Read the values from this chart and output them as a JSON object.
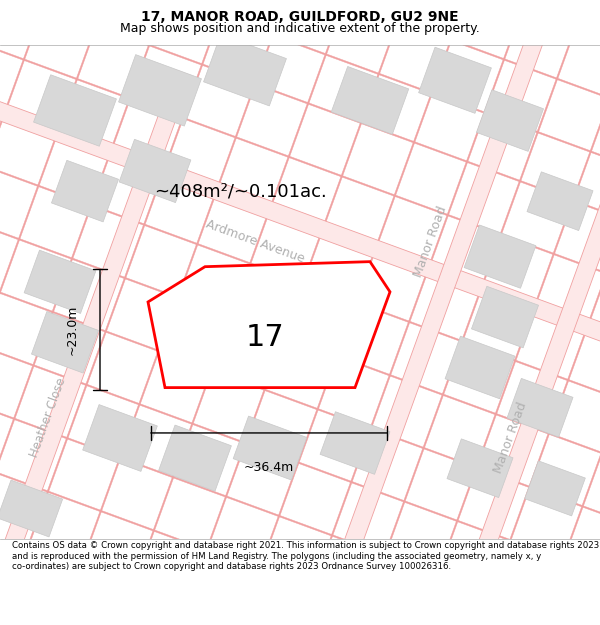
{
  "title": "17, MANOR ROAD, GUILDFORD, GU2 9NE",
  "subtitle": "Map shows position and indicative extent of the property.",
  "footer": "Contains OS data © Crown copyright and database right 2021. This information is subject to Crown copyright and database rights 2023 and is reproduced with the permission of HM Land Registry. The polygons (including the associated geometry, namely x, y co-ordinates) are subject to Crown copyright and database rights 2023 Ordnance Survey 100026316.",
  "area_label": "~408m²/~0.101ac.",
  "width_label": "~36.4m",
  "height_label": "~23.0m",
  "plot_number": "17",
  "road_color": "#f0a0a0",
  "block_color": "#d8d8d8",
  "block_edge": "#c8c8c8",
  "title_fontsize": 10,
  "subtitle_fontsize": 9,
  "footer_fontsize": 6.2,
  "area_fontsize": 13,
  "dim_fontsize": 9,
  "label_fontsize": 9,
  "street_fontsize": 9
}
